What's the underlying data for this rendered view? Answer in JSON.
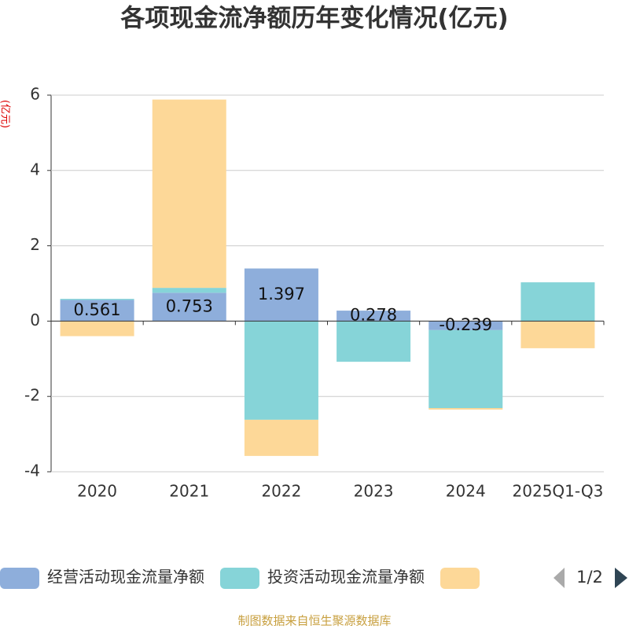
{
  "chart_data": {
    "type": "bar",
    "stacked": true,
    "title": "各项现金流净额历年变化情况(亿元)",
    "y_label": "(亿元)",
    "categories": [
      "2020",
      "2021",
      "2022",
      "2023",
      "2024",
      "2025Q1-Q3"
    ],
    "series": [
      {
        "name": "经营活动现金流量净额",
        "color": "#8eaedb",
        "values": [
          0.561,
          0.753,
          1.397,
          0.278,
          -0.239,
          -0.01
        ],
        "value_labels": [
          "0.561",
          "0.753",
          "1.397",
          "0.278",
          "-0.239",
          null
        ]
      },
      {
        "name": "投资活动现金流量净额",
        "color": "#86d4d8",
        "values": [
          0.03,
          0.13,
          -2.62,
          -1.08,
          -2.07,
          1.03
        ]
      },
      {
        "name": null,
        "color": "#fdd898",
        "values": [
          -0.4,
          5.0,
          -0.96,
          0,
          -0.04,
          -0.71
        ]
      }
    ],
    "ylim": [
      -4,
      6
    ],
    "yticks": [
      -4,
      -2,
      0,
      2,
      4,
      6
    ],
    "grid": true,
    "legend_page": "1/2",
    "source": "制图数据来自恒生聚源数据库"
  }
}
